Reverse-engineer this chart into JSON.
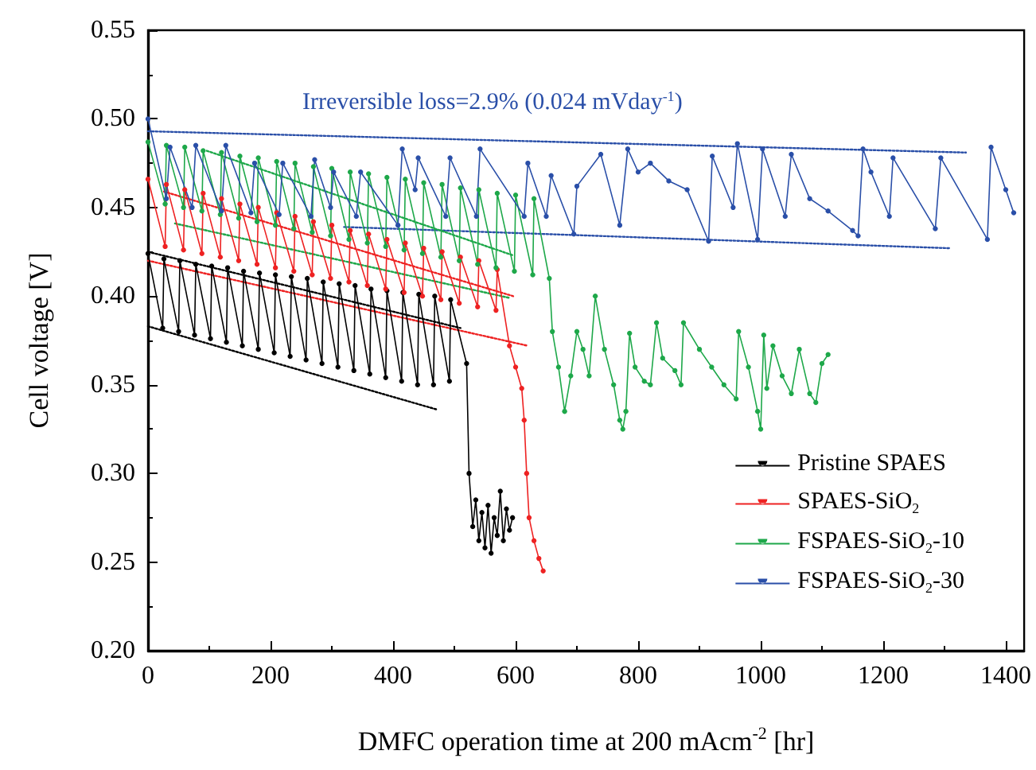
{
  "chart_data": {
    "type": "line",
    "xlabel": "DMFC operation time at 200 mAcm$^{-2}$ [hr]",
    "ylabel": "Cell voltage [V]",
    "annotations": [
      "Irreversible loss=2.9% (0.024 mVday$^{-1}$)"
    ],
    "xlim": [
      0,
      1430
    ],
    "ylim": [
      0.2,
      0.55
    ],
    "xticks": [
      0,
      200,
      400,
      600,
      800,
      1000,
      1200,
      1400
    ],
    "yticks": [
      {
        "value": 0.2,
        "label": "0.20"
      },
      {
        "value": 0.25,
        "label": "0.25"
      },
      {
        "value": 0.3,
        "label": "0.30"
      },
      {
        "value": 0.35,
        "label": "0.35"
      },
      {
        "value": 0.4,
        "label": "0.40"
      },
      {
        "value": 0.45,
        "label": "0.45"
      },
      {
        "value": 0.5,
        "label": "0.50"
      },
      {
        "value": 0.55,
        "label": "0.55"
      }
    ],
    "legend": "bottom right",
    "marker": "circle",
    "line_style": "solid",
    "series": [
      {
        "name": "Pristine SPAES",
        "color": "#000000",
        "x": [
          0,
          24,
          26,
          50,
          52,
          76,
          78,
          102,
          104,
          128,
          130,
          154,
          156,
          180,
          182,
          206,
          208,
          232,
          234,
          258,
          260,
          284,
          286,
          310,
          312,
          336,
          338,
          362,
          364,
          388,
          390,
          414,
          416,
          440,
          442,
          466,
          468,
          492,
          494,
          520,
          524,
          530,
          535,
          540,
          545,
          550,
          555,
          560,
          565,
          570,
          575,
          580,
          585,
          590,
          595
        ],
        "values": [
          0.424,
          0.382,
          0.421,
          0.38,
          0.42,
          0.378,
          0.418,
          0.376,
          0.417,
          0.374,
          0.416,
          0.372,
          0.414,
          0.37,
          0.413,
          0.368,
          0.412,
          0.366,
          0.411,
          0.364,
          0.41,
          0.362,
          0.408,
          0.36,
          0.407,
          0.358,
          0.406,
          0.356,
          0.404,
          0.354,
          0.403,
          0.352,
          0.402,
          0.35,
          0.401,
          0.35,
          0.4,
          0.352,
          0.398,
          0.362,
          0.3,
          0.27,
          0.285,
          0.262,
          0.278,
          0.258,
          0.282,
          0.255,
          0.275,
          0.265,
          0.29,
          0.262,
          0.28,
          0.268,
          0.275
        ]
      },
      {
        "name": "SPAES-SiO$_{2}$",
        "color": "#ee2222",
        "x": [
          0,
          28,
          30,
          58,
          60,
          88,
          90,
          118,
          120,
          148,
          150,
          178,
          180,
          208,
          210,
          238,
          240,
          268,
          270,
          298,
          300,
          328,
          330,
          358,
          360,
          388,
          390,
          418,
          420,
          448,
          450,
          478,
          480,
          508,
          510,
          538,
          540,
          568,
          570,
          590,
          600,
          610,
          614,
          618,
          622,
          630,
          638,
          645
        ],
        "values": [
          0.466,
          0.428,
          0.463,
          0.426,
          0.46,
          0.424,
          0.458,
          0.422,
          0.455,
          0.42,
          0.452,
          0.418,
          0.45,
          0.416,
          0.447,
          0.414,
          0.445,
          0.412,
          0.442,
          0.41,
          0.44,
          0.408,
          0.437,
          0.406,
          0.435,
          0.404,
          0.432,
          0.402,
          0.43,
          0.4,
          0.427,
          0.398,
          0.425,
          0.396,
          0.422,
          0.394,
          0.42,
          0.392,
          0.415,
          0.372,
          0.36,
          0.348,
          0.33,
          0.3,
          0.275,
          0.262,
          0.252,
          0.245
        ]
      },
      {
        "name": "FSPAES-SiO$_{2}$-10",
        "color": "#1ea84a",
        "x": [
          0,
          28,
          30,
          58,
          60,
          88,
          90,
          118,
          120,
          148,
          150,
          178,
          180,
          208,
          210,
          238,
          240,
          268,
          270,
          298,
          300,
          328,
          330,
          358,
          360,
          388,
          390,
          418,
          420,
          448,
          450,
          478,
          480,
          508,
          510,
          538,
          540,
          568,
          570,
          598,
          600,
          628,
          630,
          655,
          660,
          670,
          680,
          690,
          700,
          710,
          720,
          730,
          745,
          760,
          770,
          775,
          780,
          786,
          795,
          810,
          820,
          830,
          840,
          860,
          870,
          874,
          900,
          920,
          940,
          960,
          964,
          980,
          995,
          1000,
          1005,
          1010,
          1020,
          1035,
          1050,
          1063,
          1080,
          1090,
          1100,
          1110
        ],
        "values": [
          0.487,
          0.452,
          0.485,
          0.45,
          0.484,
          0.448,
          0.482,
          0.446,
          0.481,
          0.444,
          0.479,
          0.442,
          0.478,
          0.44,
          0.476,
          0.438,
          0.475,
          0.436,
          0.473,
          0.434,
          0.472,
          0.432,
          0.47,
          0.43,
          0.469,
          0.428,
          0.467,
          0.426,
          0.466,
          0.424,
          0.464,
          0.422,
          0.463,
          0.42,
          0.461,
          0.418,
          0.46,
          0.416,
          0.458,
          0.414,
          0.457,
          0.412,
          0.455,
          0.41,
          0.38,
          0.36,
          0.335,
          0.355,
          0.38,
          0.37,
          0.355,
          0.4,
          0.37,
          0.35,
          0.33,
          0.325,
          0.335,
          0.379,
          0.36,
          0.352,
          0.35,
          0.385,
          0.365,
          0.358,
          0.35,
          0.385,
          0.37,
          0.36,
          0.35,
          0.342,
          0.38,
          0.36,
          0.335,
          0.325,
          0.378,
          0.348,
          0.372,
          0.355,
          0.345,
          0.37,
          0.345,
          0.34,
          0.362,
          0.367
        ]
      },
      {
        "name": "FSPAES-SiO$_{2}$-30",
        "color": "#2a4fa8",
        "x": [
          0,
          30,
          36,
          72,
          78,
          120,
          127,
          168,
          174,
          214,
          220,
          266,
          272,
          298,
          303,
          340,
          347,
          408,
          415,
          436,
          441,
          486,
          493,
          536,
          542,
          614,
          620,
          650,
          658,
          695,
          700,
          739,
          770,
          783,
          800,
          820,
          850,
          880,
          915,
          921,
          955,
          962,
          995,
          1003,
          1040,
          1050,
          1080,
          1110,
          1150,
          1159,
          1167,
          1180,
          1210,
          1216,
          1285,
          1294,
          1370,
          1376,
          1400,
          1413
        ],
        "values": [
          0.5,
          0.455,
          0.484,
          0.45,
          0.485,
          0.448,
          0.485,
          0.447,
          0.475,
          0.446,
          0.475,
          0.445,
          0.477,
          0.45,
          0.47,
          0.445,
          0.47,
          0.44,
          0.483,
          0.46,
          0.478,
          0.445,
          0.478,
          0.445,
          0.483,
          0.445,
          0.475,
          0.445,
          0.468,
          0.435,
          0.462,
          0.48,
          0.44,
          0.483,
          0.47,
          0.475,
          0.465,
          0.46,
          0.431,
          0.479,
          0.45,
          0.486,
          0.432,
          0.483,
          0.445,
          0.48,
          0.455,
          0.448,
          0.437,
          0.434,
          0.483,
          0.47,
          0.445,
          0.478,
          0.438,
          0.478,
          0.432,
          0.484,
          0.46,
          0.447
        ]
      },
      {
        "type": "line",
        "color": "#2a4fa8",
        "line_style": "dotted",
        "marker": "none",
        "x": [
          0,
          1335
        ],
        "values": [
          0.493,
          0.481
        ]
      },
      {
        "type": "line",
        "color": "#2a4fa8",
        "line_style": "dotted",
        "marker": "none",
        "x": [
          320,
          1309
        ],
        "values": [
          0.439,
          0.427
        ]
      },
      {
        "type": "line",
        "color": "#1ea84a",
        "line_style": "dotted",
        "marker": "none",
        "x": [
          96,
          596
        ],
        "values": [
          0.482,
          0.423
        ]
      },
      {
        "type": "line",
        "color": "#1ea84a",
        "line_style": "dotted",
        "marker": "none",
        "x": [
          44,
          590
        ],
        "values": [
          0.441,
          0.399
        ]
      },
      {
        "type": "line",
        "color": "#ee2222",
        "line_style": "dotted",
        "marker": "none",
        "x": [
          26,
          596
        ],
        "values": [
          0.459,
          0.4
        ]
      },
      {
        "type": "line",
        "color": "#ee2222",
        "line_style": "dotted",
        "marker": "none",
        "x": [
          0,
          620
        ],
        "values": [
          0.42,
          0.372
        ]
      },
      {
        "type": "line",
        "color": "#000000",
        "line_style": "dotted",
        "marker": "none",
        "x": [
          0,
          510
        ],
        "values": [
          0.425,
          0.382
        ]
      },
      {
        "type": "line",
        "color": "#000000",
        "line_style": "dotted",
        "marker": "none",
        "x": [
          0,
          472
        ],
        "values": [
          0.383,
          0.336
        ]
      }
    ]
  }
}
